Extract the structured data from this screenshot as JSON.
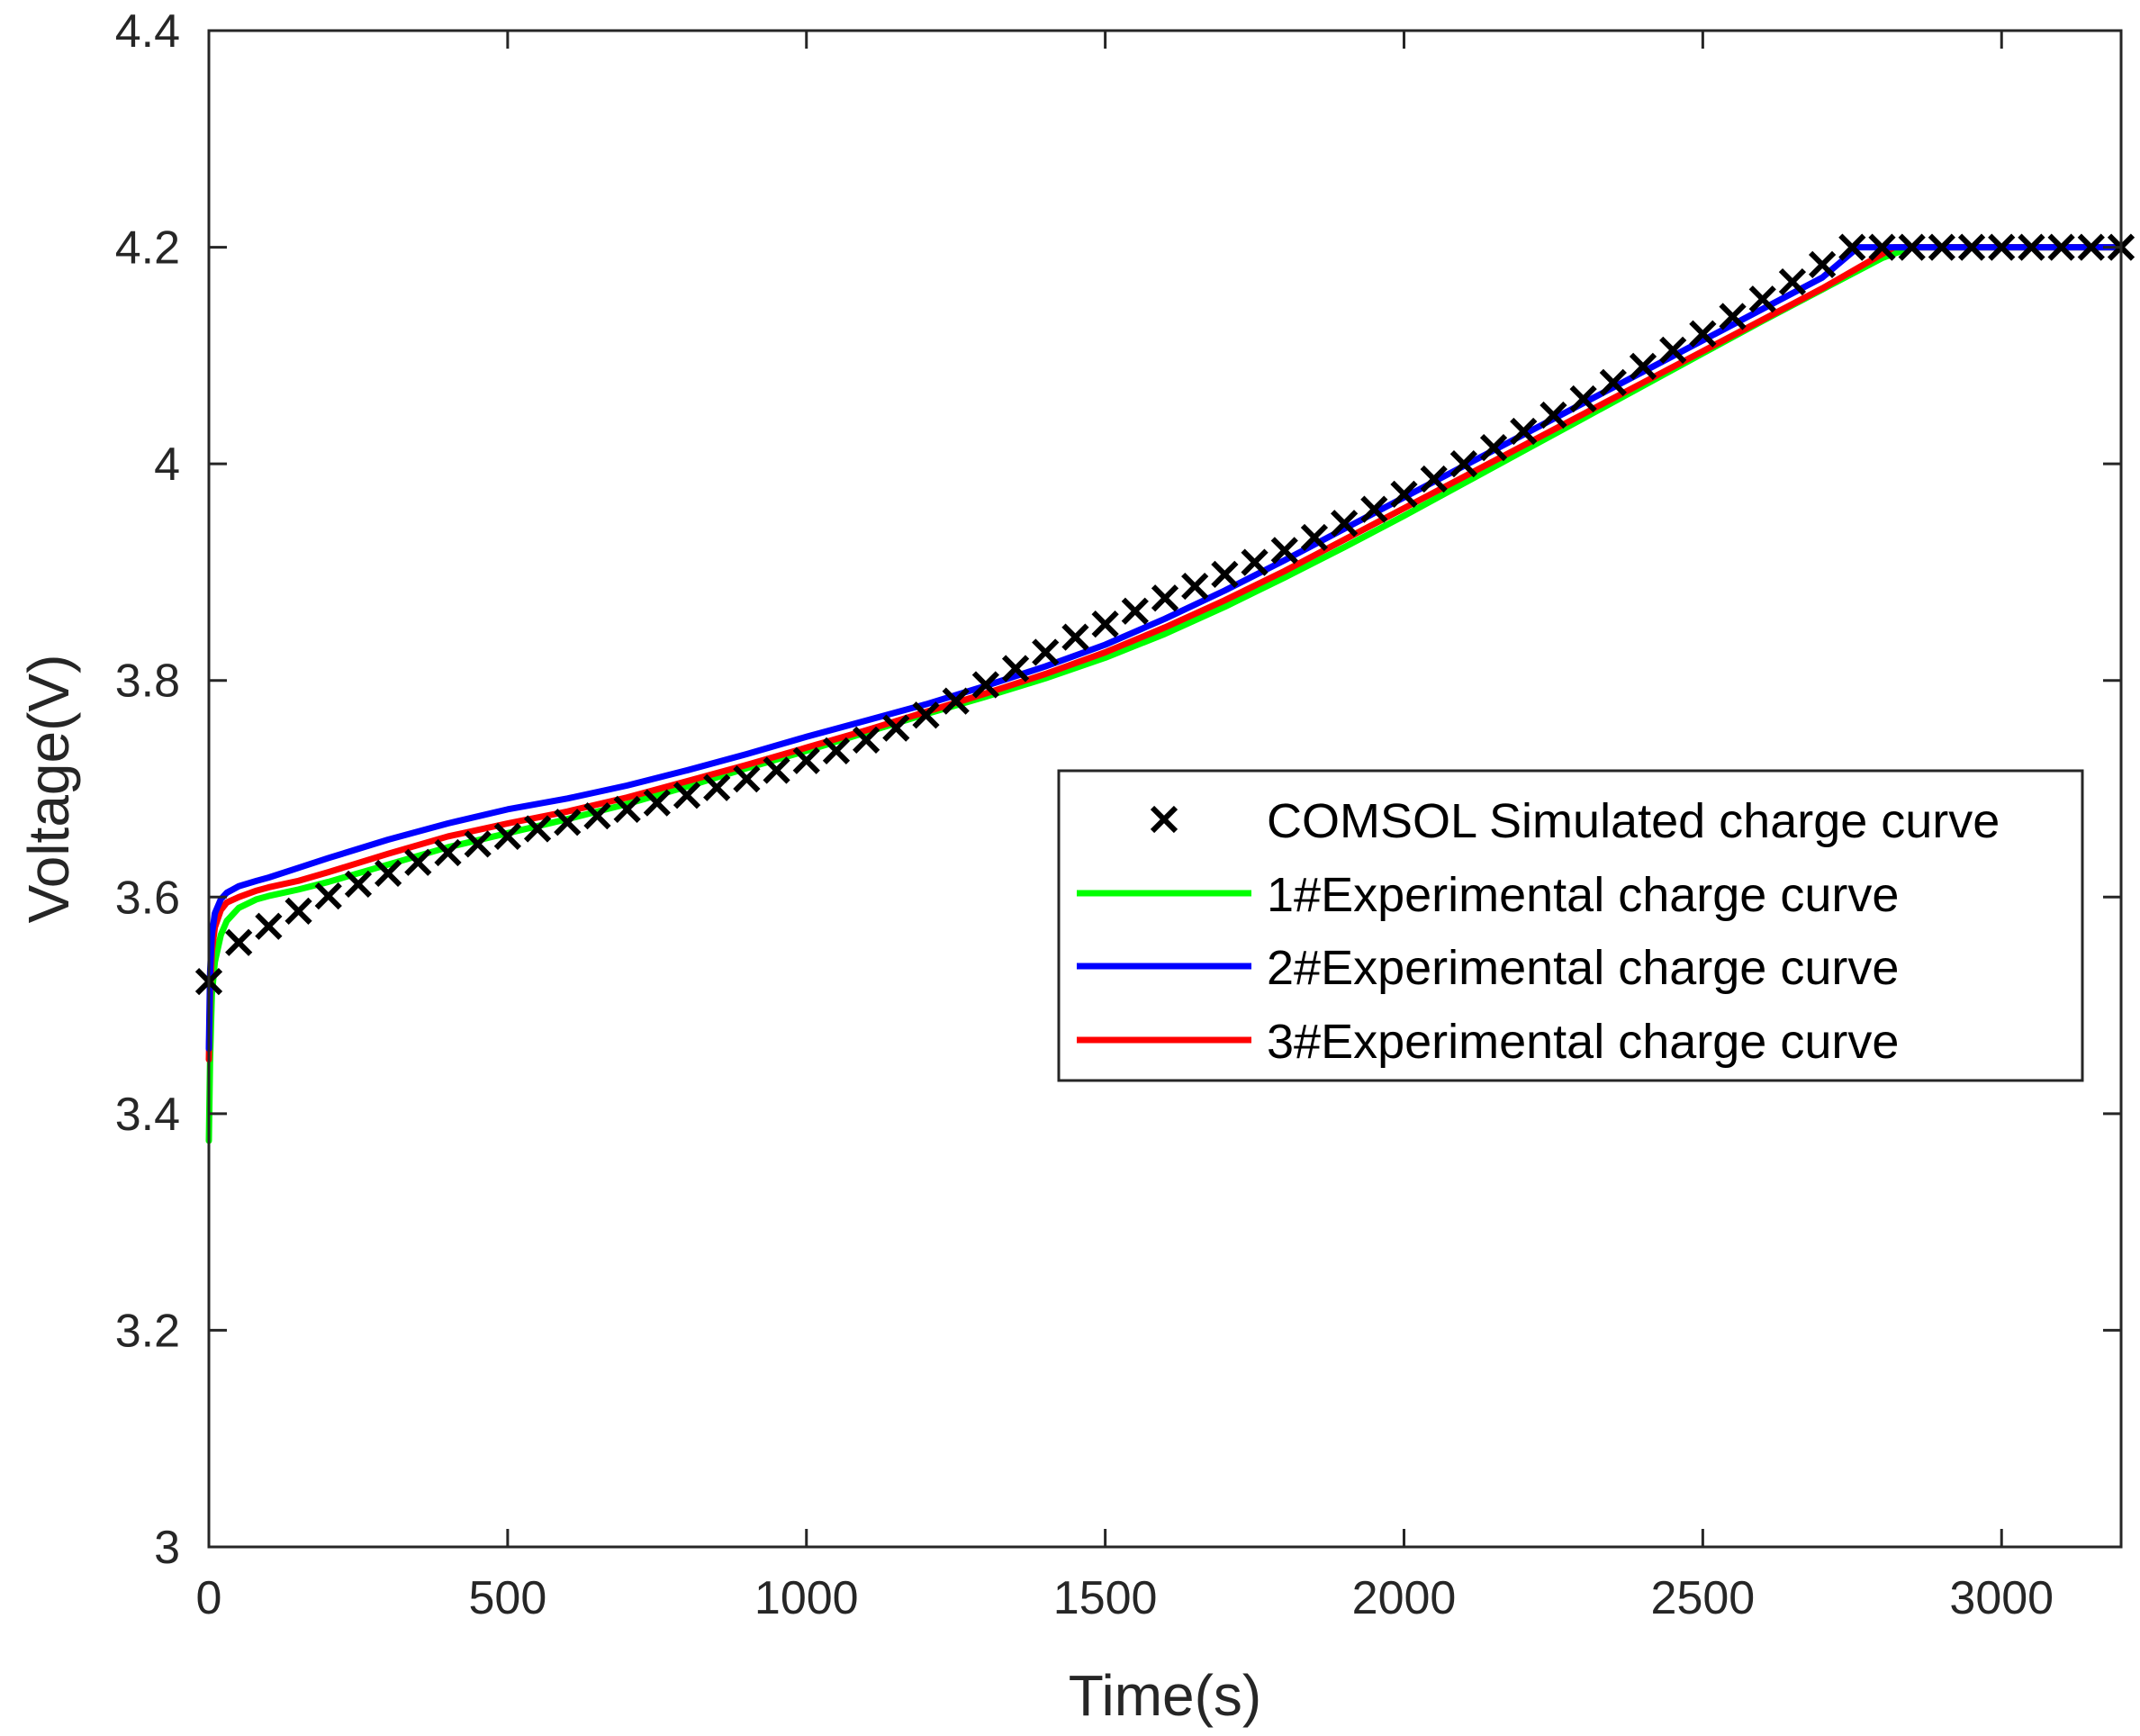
{
  "chart_data": {
    "type": "line",
    "title": "",
    "xlabel": "Time(s)",
    "ylabel": "Voltage(V)",
    "xlim": [
      0,
      3200
    ],
    "ylim": [
      3.0,
      4.4
    ],
    "xticks": [
      0,
      500,
      1000,
      1500,
      2000,
      2500,
      3000
    ],
    "xtick_labels": [
      "0",
      "500",
      "1000",
      "1500",
      "2000",
      "2500",
      "3000"
    ],
    "yticks": [
      3.0,
      3.2,
      3.4,
      3.6,
      3.8,
      4.0,
      4.2,
      4.4
    ],
    "ytick_labels": [
      "3",
      "3.2",
      "3.4",
      "3.6",
      "3.8",
      "4",
      "4.2",
      "4.4"
    ],
    "grid": false,
    "legend_position": "center-right",
    "series": [
      {
        "name": "COMSOL Simulated charge curve",
        "style": "marker-x",
        "color": "#000000",
        "x": [
          0,
          50,
          100,
          150,
          200,
          250,
          300,
          350,
          400,
          450,
          500,
          550,
          600,
          650,
          700,
          750,
          800,
          850,
          900,
          950,
          1000,
          1050,
          1100,
          1150,
          1200,
          1250,
          1300,
          1350,
          1400,
          1450,
          1500,
          1550,
          1600,
          1650,
          1700,
          1750,
          1800,
          1850,
          1900,
          1950,
          2000,
          2050,
          2100,
          2150,
          2200,
          2250,
          2300,
          2350,
          2400,
          2450,
          2500,
          2550,
          2600,
          2650,
          2700,
          2750,
          2800,
          2850,
          2900,
          2950,
          3000,
          3050,
          3100,
          3150,
          3200
        ],
        "y": [
          3.522,
          3.558,
          3.573,
          3.587,
          3.601,
          3.612,
          3.622,
          3.632,
          3.641,
          3.649,
          3.656,
          3.663,
          3.669,
          3.675,
          3.681,
          3.687,
          3.694,
          3.701,
          3.709,
          3.717,
          3.726,
          3.735,
          3.745,
          3.756,
          3.768,
          3.781,
          3.796,
          3.811,
          3.826,
          3.84,
          3.852,
          3.864,
          3.876,
          3.887,
          3.898,
          3.909,
          3.92,
          3.932,
          3.945,
          3.958,
          3.972,
          3.986,
          4.0,
          4.015,
          4.03,
          4.045,
          4.06,
          4.075,
          4.09,
          4.105,
          4.12,
          4.136,
          4.152,
          4.168,
          4.184,
          4.2,
          4.2,
          4.2,
          4.2,
          4.2,
          4.2,
          4.2,
          4.2,
          4.2,
          4.2
        ]
      },
      {
        "name": "1#Experimental charge curve",
        "style": "line",
        "color": "#00ff00",
        "x": [
          0,
          2,
          5,
          10,
          20,
          30,
          50,
          80,
          100,
          150,
          200,
          300,
          400,
          500,
          600,
          700,
          800,
          900,
          1000,
          1100,
          1200,
          1300,
          1400,
          1500,
          1600,
          1700,
          1800,
          1900,
          2000,
          2100,
          2200,
          2300,
          2400,
          2500,
          2600,
          2700,
          2800,
          2850,
          2900,
          3000,
          3100,
          3200
        ],
        "y": [
          3.375,
          3.45,
          3.51,
          3.54,
          3.565,
          3.578,
          3.59,
          3.598,
          3.601,
          3.607,
          3.614,
          3.63,
          3.646,
          3.659,
          3.672,
          3.686,
          3.702,
          3.719,
          3.735,
          3.752,
          3.769,
          3.785,
          3.802,
          3.821,
          3.843,
          3.868,
          3.895,
          3.923,
          3.952,
          3.982,
          4.012,
          4.042,
          4.072,
          4.102,
          4.132,
          4.161,
          4.19,
          4.2,
          4.2,
          4.2,
          4.2,
          4.2
        ]
      },
      {
        "name": "2#Experimental charge curve",
        "style": "line",
        "color": "#0000ff",
        "x": [
          0,
          2,
          5,
          10,
          20,
          30,
          50,
          80,
          100,
          150,
          200,
          300,
          400,
          500,
          600,
          700,
          800,
          900,
          1000,
          1100,
          1200,
          1300,
          1400,
          1500,
          1600,
          1700,
          1800,
          1900,
          2000,
          2100,
          2200,
          2300,
          2400,
          2500,
          2600,
          2700,
          2760,
          2800,
          2900,
          3000,
          3100,
          3200
        ],
        "y": [
          3.46,
          3.53,
          3.565,
          3.585,
          3.598,
          3.604,
          3.61,
          3.615,
          3.618,
          3.627,
          3.636,
          3.653,
          3.668,
          3.681,
          3.691,
          3.703,
          3.717,
          3.732,
          3.748,
          3.763,
          3.778,
          3.795,
          3.813,
          3.833,
          3.857,
          3.883,
          3.911,
          3.94,
          3.969,
          3.998,
          4.027,
          4.056,
          4.085,
          4.114,
          4.143,
          4.172,
          4.2,
          4.2,
          4.2,
          4.2,
          4.2,
          4.2
        ]
      },
      {
        "name": "3#Experimental charge curve",
        "style": "line",
        "color": "#ff0000",
        "x": [
          0,
          2,
          5,
          10,
          20,
          30,
          50,
          80,
          100,
          150,
          200,
          300,
          400,
          500,
          600,
          700,
          800,
          900,
          1000,
          1100,
          1200,
          1300,
          1400,
          1500,
          1600,
          1700,
          1800,
          1900,
          2000,
          2100,
          2200,
          2300,
          2400,
          2500,
          2600,
          2700,
          2820,
          2900,
          3000,
          3100,
          3200
        ],
        "y": [
          3.45,
          3.51,
          3.55,
          3.572,
          3.588,
          3.595,
          3.6,
          3.606,
          3.609,
          3.615,
          3.623,
          3.64,
          3.656,
          3.668,
          3.679,
          3.692,
          3.707,
          3.722,
          3.738,
          3.754,
          3.771,
          3.788,
          3.806,
          3.826,
          3.849,
          3.874,
          3.901,
          3.93,
          3.959,
          3.988,
          4.017,
          4.046,
          4.075,
          4.104,
          4.133,
          4.162,
          4.2,
          4.2,
          4.2,
          4.2,
          4.2
        ]
      }
    ]
  }
}
